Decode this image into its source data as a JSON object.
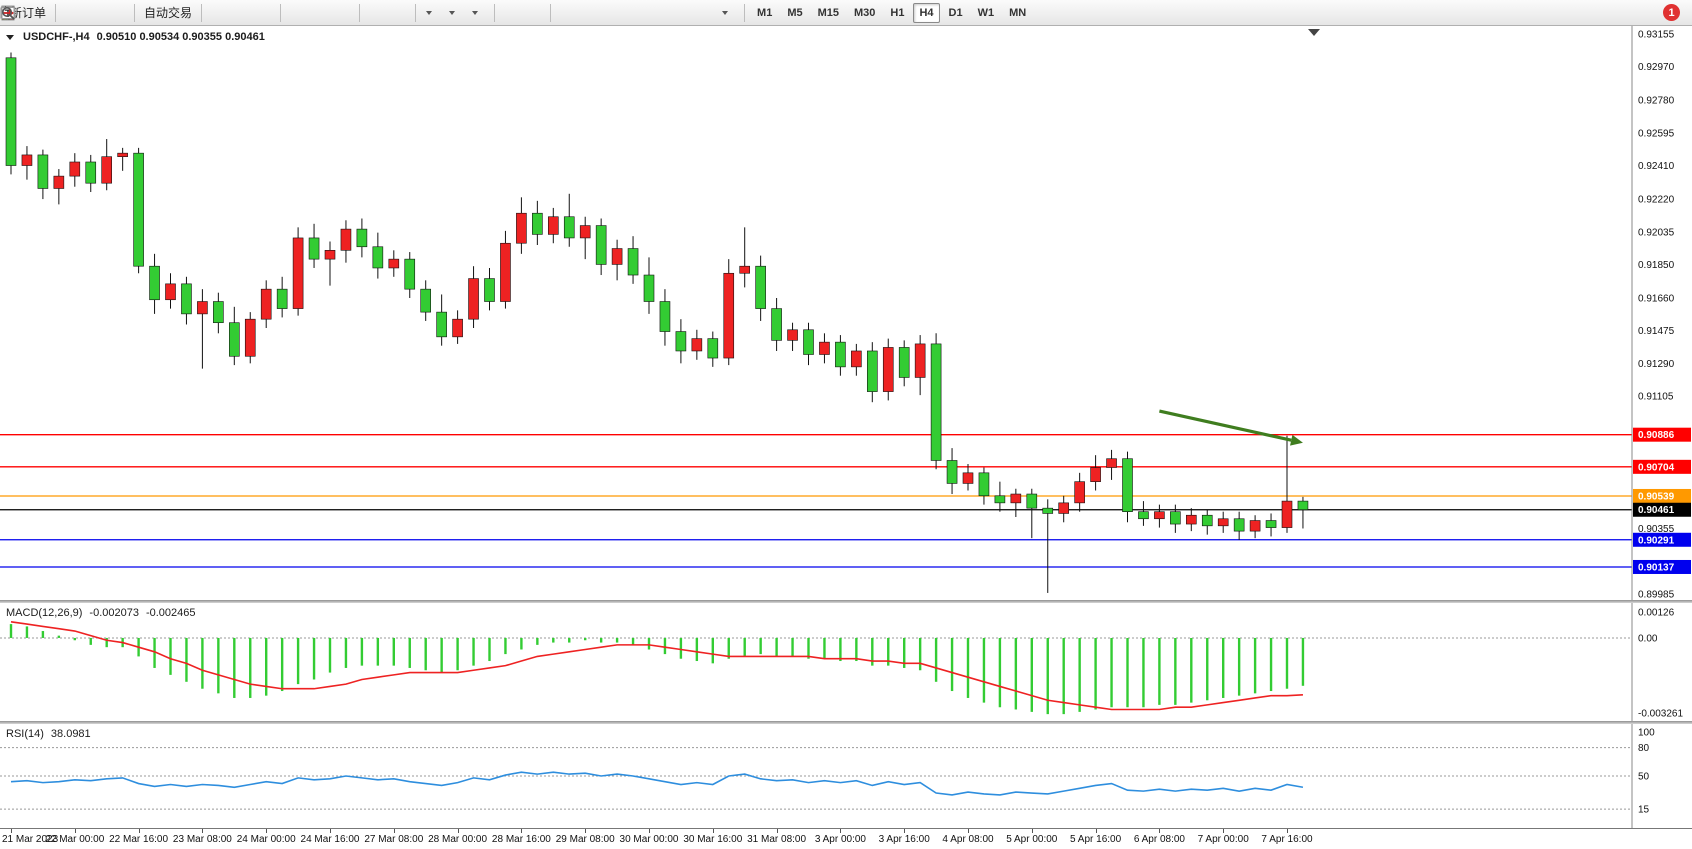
{
  "chart": {
    "title": "USDCHF-,H4",
    "ohlc": "0.90510 0.90534 0.90355 0.90461"
  },
  "toolbar": {
    "groups": [
      {
        "items": [
          {
            "name": "new-order-button",
            "icon": "order-icon",
            "label": "新订单"
          }
        ]
      },
      {
        "items": [
          {
            "name": "alerts-button",
            "icon": "megaphone-icon"
          },
          {
            "name": "terminal-button",
            "icon": "monitor-icon"
          },
          {
            "name": "community-button",
            "icon": "globe-icon"
          }
        ]
      },
      {
        "items": [
          {
            "name": "auto-trading-button",
            "icon": "autotrade-icon",
            "label": "自动交易"
          }
        ]
      },
      {
        "items": [
          {
            "name": "bar-chart-button",
            "icon": "barchart-icon"
          },
          {
            "name": "candlestick-chart-button",
            "icon": "candle-icon"
          },
          {
            "name": "line-chart-button",
            "icon": "linechart-icon"
          }
        ]
      },
      {
        "items": [
          {
            "name": "zoom-in-button",
            "icon": "zoomin-icon"
          },
          {
            "name": "zoom-out-button",
            "icon": "zoomout-icon"
          },
          {
            "name": "tile-windows-button",
            "icon": "tile-icon"
          }
        ]
      },
      {
        "items": [
          {
            "name": "indicators-button",
            "icon": "indicator-icon"
          },
          {
            "name": "objects-list-button",
            "icon": "objects-icon"
          }
        ]
      },
      {
        "items": [
          {
            "name": "new-chart-button",
            "icon": "newchart-icon",
            "dropdown": true
          },
          {
            "name": "periods-button",
            "icon": "clock-icon",
            "dropdown": true
          },
          {
            "name": "templates-button",
            "icon": "template-icon",
            "dropdown": true
          }
        ]
      },
      {
        "items": [
          {
            "name": "cursor-button",
            "icon": "cursor-icon"
          },
          {
            "name": "crosshair-button",
            "icon": "crosshair-icon"
          }
        ]
      },
      {
        "items": [
          {
            "name": "vertical-line-button",
            "icon": "vline-icon"
          },
          {
            "name": "horizontal-line-button",
            "icon": "hline-icon"
          },
          {
            "name": "trendline-button",
            "icon": "trendline-icon"
          },
          {
            "name": "channel-button",
            "icon": "channel-icon"
          },
          {
            "name": "fibonacci-button",
            "icon": "fibo-icon"
          },
          {
            "name": "text-button",
            "icon": "text-icon"
          },
          {
            "name": "label-button",
            "icon": "label-icon"
          },
          {
            "name": "arrows-button",
            "icon": "arrows-icon",
            "dropdown": true
          }
        ]
      }
    ],
    "timeframes": [
      "M1",
      "M5",
      "M15",
      "M30",
      "H1",
      "H4",
      "D1",
      "W1",
      "MN"
    ],
    "active_timeframe": "H4",
    "notification_badge": "1"
  },
  "chart_data": [
    {
      "type": "candlestick",
      "title": "USDCHF-,H4",
      "price_min": 0.8995,
      "price_max": 0.932,
      "bull_color": "#ee2222",
      "bear_color": "#33cc33",
      "wick_color": "#111111",
      "candles": [
        [
          0.9302,
          0.9305,
          0.9236,
          0.9241
        ],
        [
          0.9241,
          0.9252,
          0.9233,
          0.9247
        ],
        [
          0.9247,
          0.925,
          0.9222,
          0.9228
        ],
        [
          0.9228,
          0.9239,
          0.9219,
          0.9235
        ],
        [
          0.9235,
          0.9248,
          0.9229,
          0.9243
        ],
        [
          0.9243,
          0.9247,
          0.9226,
          0.9231
        ],
        [
          0.9231,
          0.9256,
          0.9227,
          0.9246
        ],
        [
          0.9246,
          0.9251,
          0.9238,
          0.9248
        ],
        [
          0.9248,
          0.9251,
          0.918,
          0.9184
        ],
        [
          0.9184,
          0.9191,
          0.9157,
          0.9165
        ],
        [
          0.9165,
          0.918,
          0.916,
          0.9174
        ],
        [
          0.9174,
          0.9178,
          0.9151,
          0.9157
        ],
        [
          0.9157,
          0.9171,
          0.9126,
          0.9164
        ],
        [
          0.9164,
          0.9169,
          0.9146,
          0.9152
        ],
        [
          0.9152,
          0.9161,
          0.9128,
          0.9133
        ],
        [
          0.9133,
          0.9158,
          0.9129,
          0.9154
        ],
        [
          0.9154,
          0.9176,
          0.9149,
          0.9171
        ],
        [
          0.9171,
          0.9178,
          0.9155,
          0.916
        ],
        [
          0.916,
          0.9206,
          0.9156,
          0.92
        ],
        [
          0.92,
          0.9208,
          0.9183,
          0.9188
        ],
        [
          0.9188,
          0.9198,
          0.9173,
          0.9193
        ],
        [
          0.9193,
          0.921,
          0.9186,
          0.9205
        ],
        [
          0.9205,
          0.9211,
          0.9189,
          0.9195
        ],
        [
          0.9195,
          0.9203,
          0.9177,
          0.9183
        ],
        [
          0.9183,
          0.9193,
          0.9178,
          0.9188
        ],
        [
          0.9188,
          0.9192,
          0.9166,
          0.9171
        ],
        [
          0.9171,
          0.9176,
          0.9153,
          0.9158
        ],
        [
          0.9158,
          0.9168,
          0.9139,
          0.9144
        ],
        [
          0.9144,
          0.9159,
          0.914,
          0.9154
        ],
        [
          0.9154,
          0.9184,
          0.9149,
          0.9177
        ],
        [
          0.9177,
          0.9183,
          0.9159,
          0.9164
        ],
        [
          0.9164,
          0.9204,
          0.916,
          0.9197
        ],
        [
          0.9197,
          0.9223,
          0.9191,
          0.9214
        ],
        [
          0.9214,
          0.9221,
          0.9196,
          0.9202
        ],
        [
          0.9202,
          0.9217,
          0.9197,
          0.9212
        ],
        [
          0.9212,
          0.9225,
          0.9195,
          0.92
        ],
        [
          0.92,
          0.9212,
          0.9188,
          0.9207
        ],
        [
          0.9207,
          0.9211,
          0.9179,
          0.9185
        ],
        [
          0.9185,
          0.9199,
          0.9176,
          0.9194
        ],
        [
          0.9194,
          0.9201,
          0.9174,
          0.9179
        ],
        [
          0.9179,
          0.9189,
          0.9157,
          0.9164
        ],
        [
          0.9164,
          0.9171,
          0.9139,
          0.9147
        ],
        [
          0.9147,
          0.9154,
          0.9129,
          0.9136
        ],
        [
          0.9136,
          0.9148,
          0.9131,
          0.9143
        ],
        [
          0.9143,
          0.9147,
          0.9127,
          0.9132
        ],
        [
          0.9132,
          0.9188,
          0.9128,
          0.918
        ],
        [
          0.918,
          0.9206,
          0.9172,
          0.9184
        ],
        [
          0.9184,
          0.919,
          0.9153,
          0.916
        ],
        [
          0.916,
          0.9166,
          0.9136,
          0.9142
        ],
        [
          0.9142,
          0.9152,
          0.9136,
          0.9148
        ],
        [
          0.9148,
          0.9152,
          0.9128,
          0.9134
        ],
        [
          0.9134,
          0.9146,
          0.9129,
          0.9141
        ],
        [
          0.9141,
          0.9145,
          0.9122,
          0.9127
        ],
        [
          0.9127,
          0.914,
          0.9122,
          0.9136
        ],
        [
          0.9136,
          0.9141,
          0.9107,
          0.9113
        ],
        [
          0.9113,
          0.9143,
          0.9108,
          0.9138
        ],
        [
          0.9138,
          0.9142,
          0.9116,
          0.9121
        ],
        [
          0.9121,
          0.9145,
          0.9111,
          0.914
        ],
        [
          0.914,
          0.9146,
          0.9069,
          0.9074
        ],
        [
          0.9074,
          0.9081,
          0.9055,
          0.9061
        ],
        [
          0.9061,
          0.9072,
          0.9057,
          0.9067
        ],
        [
          0.9067,
          0.907,
          0.9049,
          0.9054
        ],
        [
          0.9054,
          0.9062,
          0.9045,
          0.905
        ],
        [
          0.905,
          0.9058,
          0.9042,
          0.9055
        ],
        [
          0.9055,
          0.9058,
          0.903,
          0.9047
        ],
        [
          0.9047,
          0.9052,
          0.8999,
          0.9044
        ],
        [
          0.9044,
          0.9054,
          0.9039,
          0.905
        ],
        [
          0.905,
          0.9067,
          0.9045,
          0.9062
        ],
        [
          0.9062,
          0.9077,
          0.9057,
          0.907
        ],
        [
          0.907,
          0.908,
          0.9063,
          0.9075
        ],
        [
          0.9075,
          0.9079,
          0.9039,
          0.9045
        ],
        [
          0.9045,
          0.9051,
          0.9037,
          0.9041
        ],
        [
          0.9041,
          0.9049,
          0.9036,
          0.9045
        ],
        [
          0.9045,
          0.9049,
          0.9033,
          0.9038
        ],
        [
          0.9038,
          0.9047,
          0.9034,
          0.9043
        ],
        [
          0.9043,
          0.9046,
          0.9032,
          0.9037
        ],
        [
          0.9037,
          0.9045,
          0.9033,
          0.9041
        ],
        [
          0.9041,
          0.9045,
          0.9029,
          0.9034
        ],
        [
          0.9034,
          0.9043,
          0.903,
          0.904
        ],
        [
          0.904,
          0.9044,
          0.9031,
          0.9036
        ],
        [
          0.9036,
          0.9088,
          0.9033,
          0.9051
        ],
        [
          0.9051,
          0.90534,
          0.90355,
          0.90461
        ]
      ],
      "y_axis_labels": [
        "0.93155",
        "0.92970",
        "0.92780",
        "0.92595",
        "0.92410",
        "0.92220",
        "0.92035",
        "0.91850",
        "0.91660",
        "0.91475",
        "0.91290",
        "0.91105",
        "0.90355",
        "0.89985"
      ],
      "h_lines": [
        {
          "price": 0.90886,
          "color": "#ff0000",
          "label": "0.90886"
        },
        {
          "price": 0.90704,
          "color": "#ff0000",
          "label": "0.90704"
        },
        {
          "price": 0.90539,
          "color": "#ff9900",
          "label": "0.90539"
        },
        {
          "price": 0.90461,
          "color": "#000000",
          "label": "0.90461"
        },
        {
          "price": 0.90291,
          "color": "#0000ee",
          "label": "0.90291"
        },
        {
          "price": 0.90137,
          "color": "#0000ee",
          "label": "0.90137"
        }
      ],
      "current_price": "0.90461",
      "x_labels": [
        {
          "label": "21 Mar 2023",
          "index": 0
        },
        {
          "label": "22 Mar 00:00",
          "index": 4
        },
        {
          "label": "22 Mar 16:00",
          "index": 8
        },
        {
          "label": "23 Mar 08:00",
          "index": 12
        },
        {
          "label": "24 Mar 00:00",
          "index": 16
        },
        {
          "label": "24 Mar 16:00",
          "index": 20
        },
        {
          "label": "27 Mar 08:00",
          "index": 24
        },
        {
          "label": "28 Mar 00:00",
          "index": 28
        },
        {
          "label": "28 Mar 16:00",
          "index": 32
        },
        {
          "label": "29 Mar 08:00",
          "index": 36
        },
        {
          "label": "30 Mar 00:00",
          "index": 40
        },
        {
          "label": "30 Mar 16:00",
          "index": 44
        },
        {
          "label": "31 Mar 08:00",
          "index": 48
        },
        {
          "label": "3 Apr 00:00",
          "index": 52
        },
        {
          "label": "3 Apr 16:00",
          "index": 56
        },
        {
          "label": "4 Apr 08:00",
          "index": 60
        },
        {
          "label": "5 Apr 00:00",
          "index": 64
        },
        {
          "label": "5 Apr 16:00",
          "index": 68
        },
        {
          "label": "6 Apr 08:00",
          "index": 72
        },
        {
          "label": "7 Apr 00:00",
          "index": 76
        },
        {
          "label": "7 Apr 16:00",
          "index": 80
        }
      ],
      "annotations": [
        {
          "type": "arrow",
          "from_index": 72,
          "from_price": 0.9102,
          "to_index": 81,
          "to_price": 0.9084,
          "color": "#3f7d1f"
        }
      ]
    },
    {
      "type": "macd-histogram",
      "title": "MACD(12,26,9)",
      "value_main": "-0.002073",
      "value_signal": "-0.002465",
      "histogram_color": "#33cc33",
      "signal_color": "#ee2222",
      "range": [
        -0.003598,
        0.001514
      ],
      "y_labels": [
        "0.00126",
        "0.00",
        "-0.003261"
      ],
      "histogram": [
        0.0006,
        0.0005,
        0.0003,
        0.0001,
        -0.0001,
        -0.0003,
        -0.0004,
        -0.0004,
        -0.0008,
        -0.0013,
        -0.0016,
        -0.0019,
        -0.0022,
        -0.0024,
        -0.0026,
        -0.0026,
        -0.0025,
        -0.0023,
        -0.002,
        -0.0018,
        -0.0015,
        -0.0013,
        -0.0012,
        -0.0012,
        -0.0012,
        -0.0013,
        -0.0014,
        -0.0015,
        -0.0014,
        -0.0012,
        -0.001,
        -0.0007,
        -0.0005,
        -0.0003,
        -0.0002,
        -0.0002,
        -0.0001,
        -0.0002,
        -0.0002,
        -0.0003,
        -0.0005,
        -0.0007,
        -0.0009,
        -0.001,
        -0.0011,
        -0.0009,
        -0.0008,
        -0.0007,
        -0.0008,
        -0.0008,
        -0.0009,
        -0.0009,
        -0.001,
        -0.001,
        -0.0012,
        -0.0012,
        -0.0013,
        -0.0014,
        -0.0019,
        -0.0023,
        -0.0026,
        -0.0028,
        -0.003,
        -0.0031,
        -0.0032,
        -0.0033,
        -0.0033,
        -0.0032,
        -0.0031,
        -0.003,
        -0.003,
        -0.003,
        -0.0029,
        -0.0029,
        -0.0028,
        -0.0027,
        -0.0026,
        -0.0025,
        -0.0024,
        -0.0023,
        -0.0022,
        -0.002073
      ],
      "signal": [
        0.0007,
        0.0006,
        0.0005,
        0.0004,
        0.0003,
        0.0001,
        -0.0001,
        -0.0002,
        -0.0004,
        -0.0006,
        -0.0009,
        -0.0011,
        -0.0014,
        -0.0016,
        -0.0018,
        -0.002,
        -0.0021,
        -0.0022,
        -0.0022,
        -0.0022,
        -0.0021,
        -0.002,
        -0.0018,
        -0.0017,
        -0.0016,
        -0.0015,
        -0.0015,
        -0.0015,
        -0.0015,
        -0.0014,
        -0.0013,
        -0.0012,
        -0.001,
        -0.0008,
        -0.0007,
        -0.0006,
        -0.0005,
        -0.0004,
        -0.0003,
        -0.0003,
        -0.0003,
        -0.0004,
        -0.0005,
        -0.0006,
        -0.0007,
        -0.0008,
        -0.0008,
        -0.0008,
        -0.0008,
        -0.0008,
        -0.0008,
        -0.0009,
        -0.0009,
        -0.0009,
        -0.001,
        -0.001,
        -0.0011,
        -0.0011,
        -0.0013,
        -0.0015,
        -0.0017,
        -0.0019,
        -0.0021,
        -0.0023,
        -0.0025,
        -0.0027,
        -0.0028,
        -0.0029,
        -0.003,
        -0.0031,
        -0.0031,
        -0.0031,
        -0.0031,
        -0.003,
        -0.003,
        -0.0029,
        -0.0028,
        -0.0027,
        -0.0026,
        -0.0025,
        -0.0025,
        -0.002465
      ]
    },
    {
      "type": "line",
      "title": "RSI(14)",
      "value": "38.0981",
      "line_color": "#2e8ede",
      "range": [
        -5,
        105
      ],
      "levels": [
        80,
        50,
        15
      ],
      "y_labels": [
        "100",
        "80",
        "50",
        "15"
      ],
      "values": [
        44,
        45,
        43,
        44,
        46,
        45,
        47,
        48,
        42,
        39,
        41,
        39,
        41,
        40,
        38,
        41,
        44,
        42,
        48,
        46,
        47,
        50,
        48,
        46,
        47,
        44,
        42,
        40,
        43,
        48,
        46,
        51,
        54,
        52,
        54,
        52,
        53,
        50,
        52,
        50,
        47,
        44,
        41,
        43,
        41,
        50,
        52,
        47,
        45,
        46,
        43,
        45,
        43,
        45,
        40,
        44,
        41,
        43,
        32,
        30,
        33,
        31,
        30,
        33,
        32,
        31,
        34,
        37,
        40,
        42,
        35,
        34,
        36,
        34,
        36,
        35,
        37,
        34,
        37,
        35,
        41,
        38.0981
      ]
    }
  ]
}
